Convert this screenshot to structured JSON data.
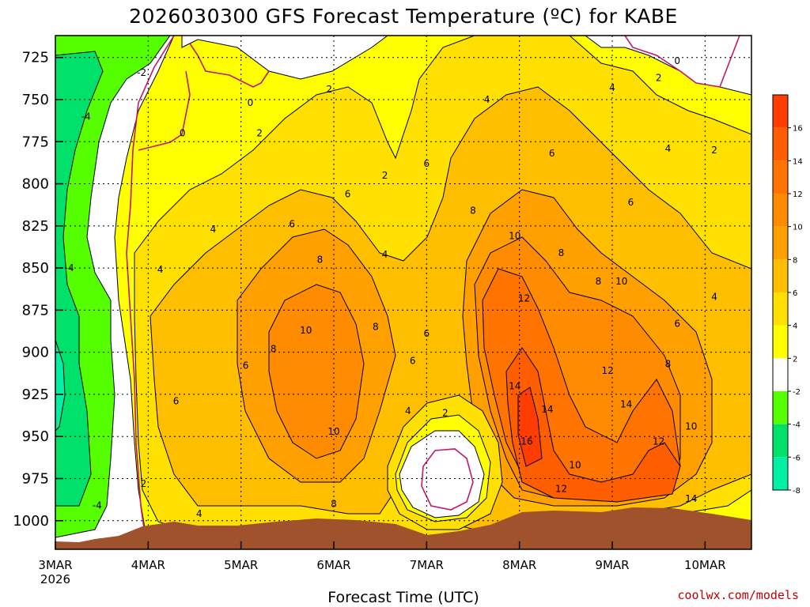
{
  "chart_data": {
    "type": "heatmap",
    "title": "2026030300 GFS Forecast Temperature (ºC) for KABE",
    "xlabel": "Forecast Time (UTC)",
    "ylabel": "",
    "credit": "coolwx.com/models",
    "x_ticks": [
      {
        "label": "3MAR",
        "sub": "2026",
        "day": 0
      },
      {
        "label": "4MAR",
        "sub": "",
        "day": 1
      },
      {
        "label": "5MAR",
        "sub": "",
        "day": 2
      },
      {
        "label": "6MAR",
        "sub": "",
        "day": 3
      },
      {
        "label": "7MAR",
        "sub": "",
        "day": 4
      },
      {
        "label": "8MAR",
        "sub": "",
        "day": 5
      },
      {
        "label": "9MAR",
        "sub": "",
        "day": 6
      },
      {
        "label": "10MAR",
        "sub": "",
        "day": 7
      }
    ],
    "xlim": [
      0,
      7.5
    ],
    "y_ticks": [
      "725",
      "750",
      "775",
      "800",
      "825",
      "850",
      "875",
      "900",
      "925",
      "950",
      "975",
      "1000"
    ],
    "ylim": [
      712,
      1017
    ],
    "grid": true,
    "colorbar": {
      "labels": [
        "16",
        "14",
        "12",
        "10",
        "8",
        "6",
        "4",
        "2",
        "-2",
        "-4",
        "-6",
        "-8"
      ],
      "colors": [
        "#ff3d00",
        "#ff5e00",
        "#ff7400",
        "#ff8c00",
        "#ffa000",
        "#ffbe00",
        "#ffe000",
        "#ffff00",
        "#ffffff",
        "#55ff00",
        "#00e16c",
        "#00f0a4"
      ]
    },
    "ground_color": "#a0522d",
    "contour_labels": [
      {
        "text": "-4",
        "day": 0.33,
        "p": 760
      },
      {
        "text": "-2",
        "day": 0.93,
        "p": 734
      },
      {
        "text": "0",
        "day": 1.37,
        "p": 770
      },
      {
        "text": "0",
        "day": 2.1,
        "p": 752
      },
      {
        "text": "2",
        "day": 2.2,
        "p": 770
      },
      {
        "text": "2",
        "day": 2.95,
        "p": 744
      },
      {
        "text": "4",
        "day": 4.65,
        "p": 750
      },
      {
        "text": "4",
        "day": 6.0,
        "p": 743
      },
      {
        "text": "2",
        "day": 6.5,
        "p": 737
      },
      {
        "text": "0",
        "day": 6.7,
        "p": 727
      },
      {
        "text": "4",
        "day": 6.6,
        "p": 779
      },
      {
        "text": "2",
        "day": 7.1,
        "p": 780
      },
      {
        "text": "6",
        "day": 5.35,
        "p": 782
      },
      {
        "text": "6",
        "day": 4.0,
        "p": 788
      },
      {
        "text": "2",
        "day": 3.55,
        "p": 795
      },
      {
        "text": "6",
        "day": 6.2,
        "p": 811
      },
      {
        "text": "8",
        "day": 4.5,
        "p": 816
      },
      {
        "text": "10",
        "day": 4.95,
        "p": 831
      },
      {
        "text": "8",
        "day": 5.45,
        "p": 841
      },
      {
        "text": "4",
        "day": 1.7,
        "p": 827
      },
      {
        "text": "6",
        "day": 2.55,
        "p": 824
      },
      {
        "text": "6",
        "day": 3.15,
        "p": 806
      },
      {
        "text": "4",
        "day": 3.55,
        "p": 842
      },
      {
        "text": "8",
        "day": 2.85,
        "p": 845
      },
      {
        "text": "-4",
        "day": 0.15,
        "p": 850
      },
      {
        "text": "4",
        "day": 1.13,
        "p": 851
      },
      {
        "text": "8",
        "day": 5.85,
        "p": 858
      },
      {
        "text": "10",
        "day": 6.1,
        "p": 858
      },
      {
        "text": "12",
        "day": 5.05,
        "p": 868
      },
      {
        "text": "4",
        "day": 7.1,
        "p": 867
      },
      {
        "text": "6",
        "day": 6.7,
        "p": 883
      },
      {
        "text": "10",
        "day": 2.7,
        "p": 887
      },
      {
        "text": "8",
        "day": 3.45,
        "p": 885
      },
      {
        "text": "6",
        "day": 4.0,
        "p": 889
      },
      {
        "text": "8",
        "day": 2.35,
        "p": 898
      },
      {
        "text": "6",
        "day": 2.05,
        "p": 908
      },
      {
        "text": "6",
        "day": 3.85,
        "p": 905
      },
      {
        "text": "12",
        "day": 5.95,
        "p": 911
      },
      {
        "text": "8",
        "day": 6.6,
        "p": 907
      },
      {
        "text": "14",
        "day": 4.95,
        "p": 920
      },
      {
        "text": "6",
        "day": 1.3,
        "p": 929
      },
      {
        "text": "4",
        "day": 3.8,
        "p": 935
      },
      {
        "text": "2",
        "day": 4.2,
        "p": 936
      },
      {
        "text": "14",
        "day": 5.3,
        "p": 934
      },
      {
        "text": "14",
        "day": 6.15,
        "p": 931
      },
      {
        "text": "10",
        "day": 6.85,
        "p": 944
      },
      {
        "text": "10",
        "day": 3.0,
        "p": 947
      },
      {
        "text": "16",
        "day": 5.08,
        "p": 953
      },
      {
        "text": "12",
        "day": 6.5,
        "p": 953
      },
      {
        "text": "10",
        "day": 5.6,
        "p": 967
      },
      {
        "text": "2",
        "day": 0.95,
        "p": 978
      },
      {
        "text": "12",
        "day": 5.45,
        "p": 981
      },
      {
        "text": "-4",
        "day": 0.45,
        "p": 991
      },
      {
        "text": "8",
        "day": 3.0,
        "p": 990
      },
      {
        "text": "14",
        "day": 6.85,
        "p": 987
      },
      {
        "text": "4",
        "day": 1.55,
        "p": 996
      }
    ]
  }
}
